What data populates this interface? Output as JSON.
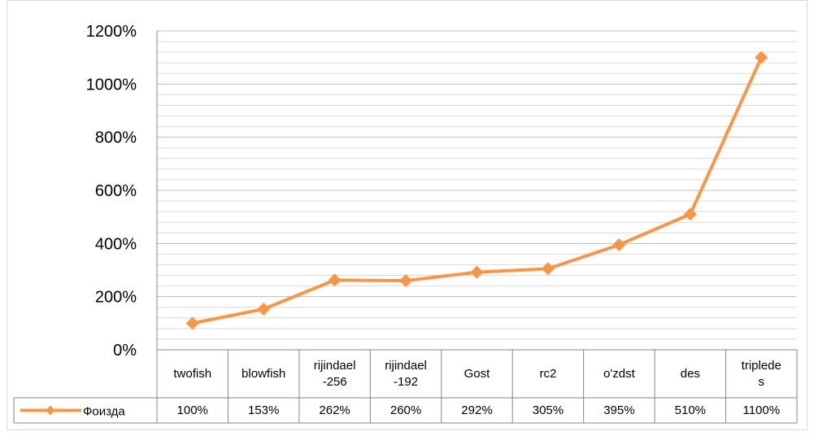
{
  "chart_data": {
    "type": "line",
    "categories": [
      "twofish",
      "blowfish",
      "rijindael-256",
      "rijindael-192",
      "Gost",
      "rc2",
      "o'zdst",
      "des",
      "tripledes"
    ],
    "series": [
      {
        "name": "Фоизда",
        "color": "#f79646",
        "values": [
          100,
          153,
          262,
          260,
          292,
          305,
          395,
          510,
          1100
        ],
        "value_labels": [
          "100%",
          "153%",
          "262%",
          "260%",
          "292%",
          "305%",
          "395%",
          "510%",
          "1100%"
        ]
      }
    ],
    "ylim": [
      0,
      1200
    ],
    "yticks": [
      {
        "value": 0,
        "label": "0%"
      },
      {
        "value": 200,
        "label": "200%"
      },
      {
        "value": 400,
        "label": "400%"
      },
      {
        "value": 600,
        "label": "600%"
      },
      {
        "value": 800,
        "label": "800%"
      },
      {
        "value": 1000,
        "label": "1000%"
      },
      {
        "value": 1200,
        "label": "1200%"
      }
    ],
    "grid": true,
    "minor_grid": true,
    "data_table": true
  }
}
